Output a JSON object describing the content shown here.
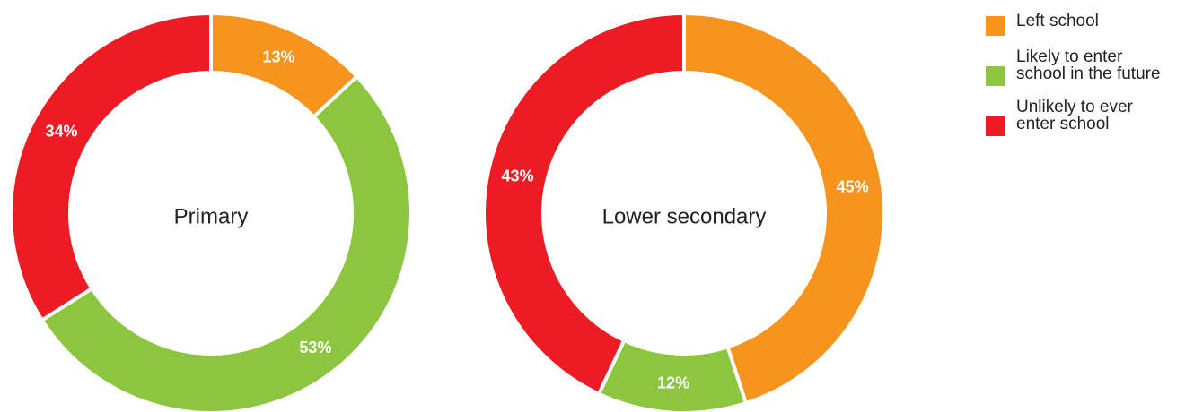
{
  "chart_data": {
    "type": "pie",
    "legend_position": "top-right",
    "series_names": [
      "Left school",
      "Likely to enter school in the future",
      "Unlikely to ever enter school"
    ],
    "series_legend_labels": [
      [
        "Left school"
      ],
      [
        "Likely to enter",
        "school in the future"
      ],
      [
        "Unlikely to ever",
        "enter school"
      ]
    ],
    "colors": [
      "#f7941d",
      "#8cc63f",
      "#ed1c24"
    ],
    "charts": [
      {
        "center_label": "Primary",
        "values": [
          13,
          53,
          34
        ],
        "value_labels": [
          "13%",
          "53%",
          "34%"
        ]
      },
      {
        "center_label": "Lower secondary",
        "values": [
          45,
          12,
          43
        ],
        "value_labels": [
          "45%",
          "12%",
          "43%"
        ]
      }
    ]
  }
}
